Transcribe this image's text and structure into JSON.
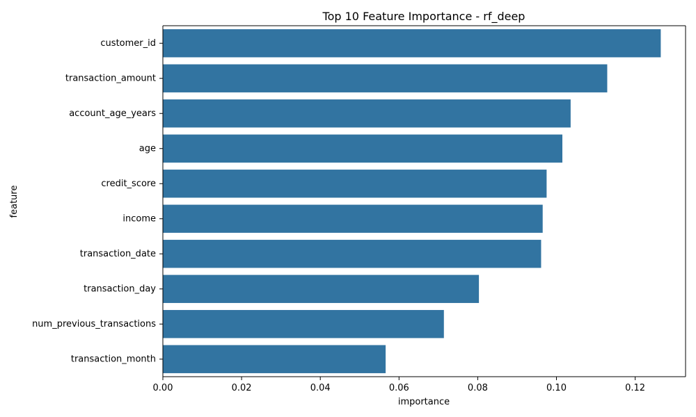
{
  "chart_data": {
    "type": "bar",
    "orientation": "horizontal",
    "title": "Top 10 Feature Importance - rf_deep",
    "xlabel": "importance",
    "ylabel": "feature",
    "categories": [
      "customer_id",
      "transaction_amount",
      "account_age_years",
      "age",
      "credit_score",
      "income",
      "transaction_date",
      "transaction_day",
      "num_previous_transactions",
      "transaction_month"
    ],
    "values": [
      0.1265,
      0.1129,
      0.1036,
      0.1015,
      0.0975,
      0.0965,
      0.0961,
      0.0803,
      0.0714,
      0.0566
    ],
    "xlim": [
      0,
      0.1328
    ],
    "xticks": [
      0,
      0.02,
      0.04,
      0.06,
      0.08,
      0.1,
      0.12
    ],
    "xtick_labels": [
      "0.00",
      "0.02",
      "0.04",
      "0.06",
      "0.08",
      "0.10",
      "0.12"
    ],
    "bar_color": "#3274a1",
    "grid": false,
    "legend": "none"
  }
}
